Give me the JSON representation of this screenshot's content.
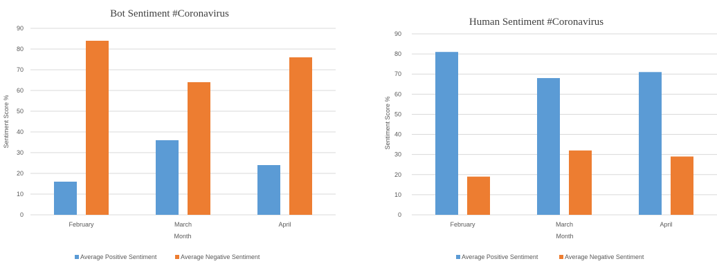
{
  "colors": {
    "positive": "#5b9bd5",
    "negative": "#ed7d31",
    "grid": "#d9d9d9",
    "text": "#595959"
  },
  "chart_data": [
    {
      "type": "bar",
      "title": "Bot Sentiment #Coronavirus",
      "xlabel": "Month",
      "ylabel": "Sentiment Score %",
      "ylim": [
        0,
        90
      ],
      "yticks": [
        0,
        10,
        20,
        30,
        40,
        50,
        60,
        70,
        80,
        90
      ],
      "categories": [
        "February",
        "March",
        "April"
      ],
      "series": [
        {
          "name": "Average Positive Sentiment",
          "values": [
            16,
            36,
            24
          ]
        },
        {
          "name": "Average Negative Sentiment",
          "values": [
            84,
            64,
            76
          ]
        }
      ],
      "grid": true,
      "legend": "bottom"
    },
    {
      "type": "bar",
      "title": "Human Sentiment #Coronavirus",
      "xlabel": "Month",
      "ylabel": "Sentiment Score %",
      "ylim": [
        0,
        90
      ],
      "yticks": [
        0,
        10,
        20,
        30,
        40,
        50,
        60,
        70,
        80,
        90
      ],
      "categories": [
        "February",
        "March",
        "April"
      ],
      "series": [
        {
          "name": "Average Positive Sentiment",
          "values": [
            81,
            68,
            71
          ]
        },
        {
          "name": "Average Negative Sentiment",
          "values": [
            19,
            32,
            29
          ]
        }
      ],
      "grid": true,
      "legend": "bottom"
    }
  ]
}
